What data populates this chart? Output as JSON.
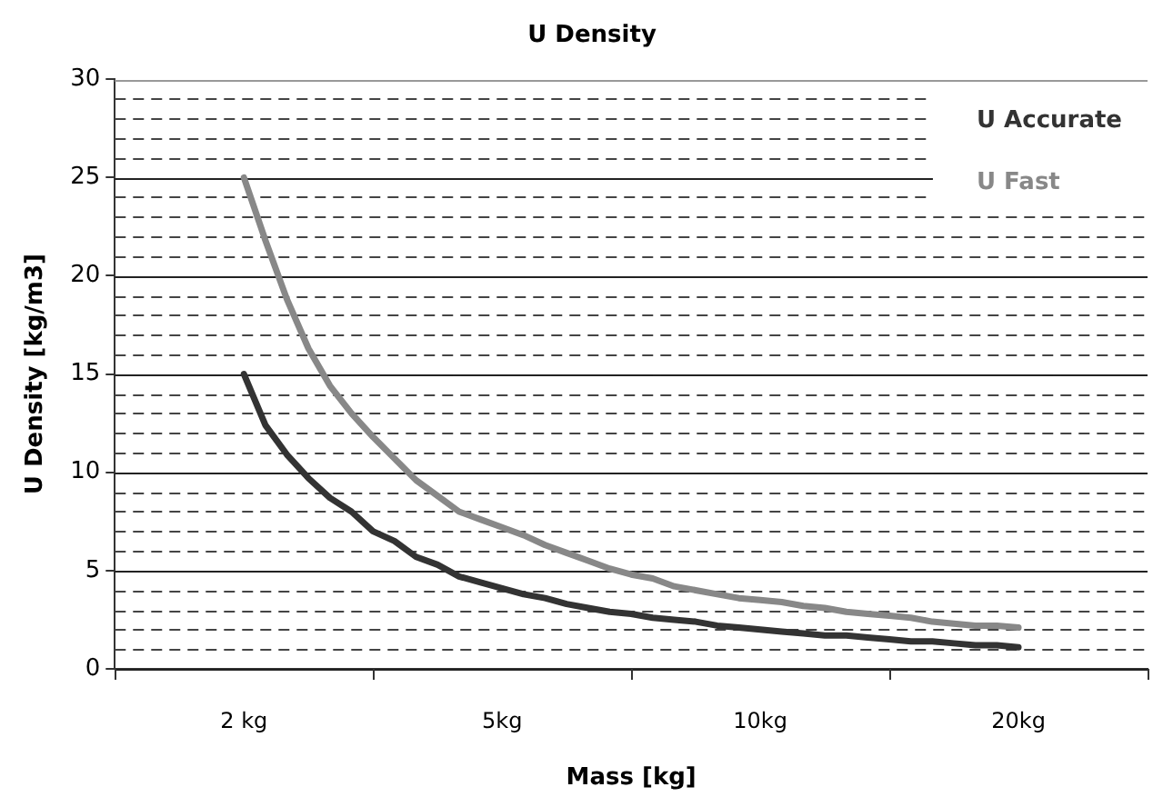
{
  "chart_data": {
    "type": "line",
    "title": "U Density",
    "xlabel": "Mass [kg]",
    "ylabel": "U Density [kg/m3]",
    "categories": [
      null,
      null,
      null,
      null,
      null,
      null,
      "2 kg",
      null,
      null,
      null,
      null,
      null,
      null,
      null,
      null,
      null,
      null,
      null,
      "5kg",
      null,
      null,
      null,
      null,
      null,
      null,
      null,
      null,
      null,
      null,
      null,
      "10kg",
      null,
      null,
      null,
      null,
      null,
      null,
      null,
      null,
      null,
      null,
      null,
      "20kg",
      null,
      null,
      null,
      null,
      null,
      null
    ],
    "series": [
      {
        "name": "U Accurate",
        "color": "#333333",
        "values": [
          null,
          null,
          null,
          null,
          null,
          null,
          15,
          12.4,
          10.9,
          9.7,
          8.7,
          8.0,
          7.0,
          6.5,
          5.7,
          5.3,
          4.7,
          4.4,
          4.1,
          3.8,
          3.6,
          3.3,
          3.1,
          2.9,
          2.8,
          2.6,
          2.5,
          2.4,
          2.2,
          2.1,
          2.0,
          1.9,
          1.8,
          1.7,
          1.7,
          1.6,
          1.5,
          1.4,
          1.4,
          1.3,
          1.2,
          1.2,
          1.1,
          null,
          null,
          null,
          null,
          null,
          null
        ]
      },
      {
        "name": "U Fast",
        "color": "#888888",
        "values": [
          null,
          null,
          null,
          null,
          null,
          null,
          25,
          21.8,
          18.8,
          16.3,
          14.4,
          13.0,
          11.8,
          10.7,
          9.6,
          8.8,
          8.0,
          7.6,
          7.2,
          6.8,
          6.3,
          5.9,
          5.5,
          5.1,
          4.8,
          4.6,
          4.2,
          4.0,
          3.8,
          3.6,
          3.5,
          3.4,
          3.2,
          3.1,
          2.9,
          2.8,
          2.7,
          2.6,
          2.4,
          2.3,
          2.2,
          2.2,
          2.1,
          null,
          null,
          null,
          null,
          null,
          null
        ]
      }
    ],
    "ylim": [
      0,
      30
    ],
    "yticks": [
      0,
      {
        "value": 1,
        "label": null
      },
      {
        "value": 2,
        "label": null
      },
      {
        "value": 3,
        "label": null
      },
      {
        "value": 4,
        "label": null
      },
      5,
      {
        "value": 6,
        "label": null
      },
      {
        "value": 7,
        "label": null
      },
      {
        "value": 8,
        "label": null
      },
      {
        "value": 9,
        "label": null
      },
      10,
      {
        "value": 11,
        "label": null
      },
      {
        "value": 12,
        "label": null
      },
      {
        "value": 13,
        "label": null
      },
      {
        "value": 14,
        "label": null
      },
      15,
      {
        "value": 16,
        "label": null
      },
      {
        "value": 17,
        "label": null
      },
      {
        "value": 18,
        "label": null
      },
      {
        "value": 19,
        "label": null
      },
      20,
      {
        "value": 21,
        "label": null
      },
      {
        "value": 22,
        "label": null
      },
      {
        "value": 23,
        "label": null
      },
      {
        "value": 24,
        "label": null
      },
      25,
      {
        "value": 26,
        "label": null
      },
      {
        "value": 27,
        "label": null
      },
      {
        "value": 28,
        "label": null
      },
      {
        "value": 29,
        "label": null
      },
      30
    ],
    "grid": "y",
    "legend": "top right",
    "marker": "none",
    "line_style": "solid"
  }
}
